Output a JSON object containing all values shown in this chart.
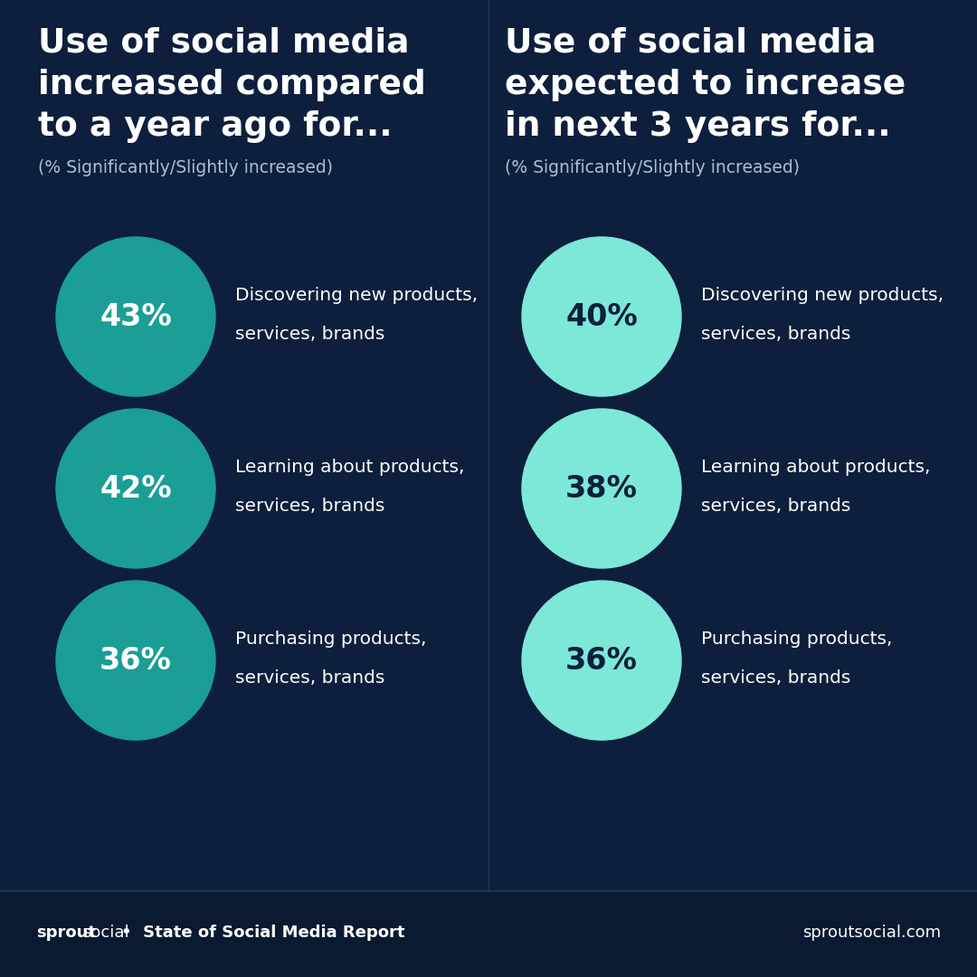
{
  "bg_color": "#0d1f3c",
  "footer_bg": "#0a1a30",
  "left_title_line1": "Use of social media",
  "left_title_line2": "increased compared",
  "left_title_line3": "to a year ago for...",
  "right_title_line1": "Use of social media",
  "right_title_line2": "expected to increase",
  "right_title_line3": "in next 3 years for...",
  "subtitle": "(% Significantly/Slightly increased)",
  "left_items": [
    {
      "pct": "43%",
      "label_line1": "Discovering new products,",
      "label_line2": "services, brands"
    },
    {
      "pct": "42%",
      "label_line1": "Learning about products,",
      "label_line2": "services, brands"
    },
    {
      "pct": "36%",
      "label_line1": "Purchasing products,",
      "label_line2": "services, brands"
    }
  ],
  "right_items": [
    {
      "pct": "40%",
      "label_line1": "Discovering new products,",
      "label_line2": "services, brands"
    },
    {
      "pct": "38%",
      "label_line1": "Learning about products,",
      "label_line2": "services, brands"
    },
    {
      "pct": "36%",
      "label_line1": "Purchasing products,",
      "label_line2": "services, brands"
    }
  ],
  "left_circle_color": "#1a9e96",
  "right_circle_color": "#7de8d8",
  "left_pct_color": "#ffffff",
  "right_pct_color": "#0d1f3c",
  "label_color": "#ffffff",
  "title_color": "#ffffff",
  "subtitle_color": "#a8c0d8",
  "footer_sprout_color": "#ffffff",
  "footer_regular_color": "#ffffff",
  "footer_divider_color": "#1e3a5a",
  "divider_color": "#1e3a5a"
}
